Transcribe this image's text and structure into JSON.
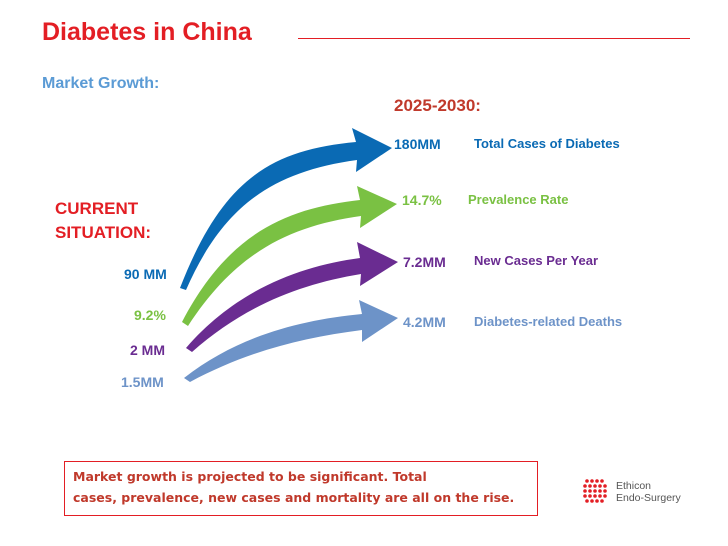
{
  "slide": {
    "title": "Diabetes in China",
    "subtitle": "Market Growth:",
    "period": "2025-2030:",
    "current_label_line1": "CURRENT",
    "current_label_line2": "SITUATION:"
  },
  "metrics": [
    {
      "current": "90 MM",
      "future": "180MM",
      "label": "Total Cases of Diabetes",
      "color": "#0a6ab4"
    },
    {
      "current": "9.2%",
      "future": "14.7%",
      "label": "Prevalence Rate",
      "color": "#7ac143"
    },
    {
      "current": "2 MM",
      "future": "7.2MM",
      "label": "New Cases Per Year",
      "color": "#6a2c91"
    },
    {
      "current": "1.5MM",
      "future": "4.2MM",
      "label": "Diabetes-related Deaths",
      "color": "#6d93c8"
    }
  ],
  "note": {
    "line1": "Market growth is projected to be significant. Total",
    "line2": "cases, prevalence, new cases and mortality are all on the rise."
  },
  "logo": {
    "line1": "Ethicon",
    "line2": "Endo-Surgery"
  },
  "colors": {
    "brand_red": "#e31e24",
    "heading_blue": "#5b9bd5"
  }
}
